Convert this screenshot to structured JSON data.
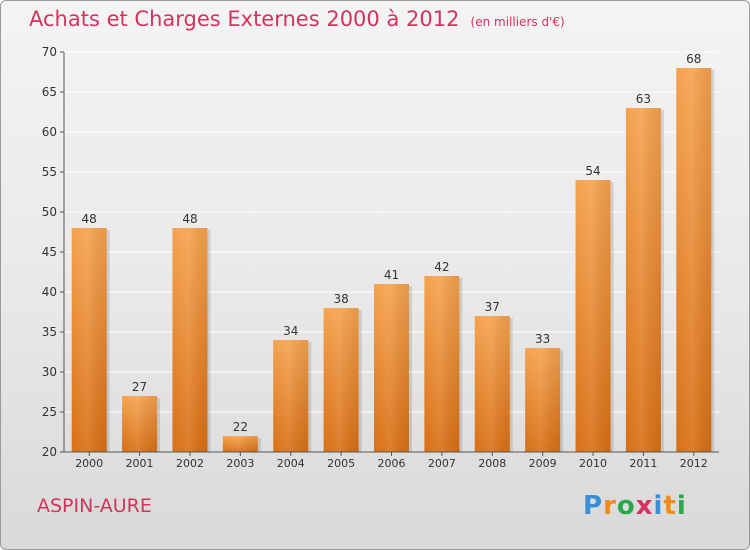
{
  "title": "Achats et Charges Externes 2000 à 2012",
  "subtitle": "(en milliers d'€)",
  "commune": "ASPIN-AURE",
  "brand": {
    "letters": [
      "P",
      "r",
      "o",
      "x",
      "i",
      "t",
      "i"
    ],
    "colors": [
      "#3a8fd6",
      "#f08a1a",
      "#2aa84a",
      "#d2345e",
      "#3a8fd6",
      "#f08a1a",
      "#2aa84a"
    ]
  },
  "colors": {
    "bar_top": "#f5a24e",
    "bar_bottom": "#d86f15",
    "title": "#d2345e",
    "axis_text": "#333333",
    "grid": "#ffffff"
  },
  "chart_data": {
    "type": "bar",
    "categories": [
      "2000",
      "2001",
      "2002",
      "2003",
      "2004",
      "2005",
      "2006",
      "2007",
      "2008",
      "2009",
      "2010",
      "2011",
      "2012"
    ],
    "values": [
      48,
      27,
      48,
      22,
      34,
      38,
      41,
      42,
      37,
      33,
      54,
      63,
      68
    ],
    "ylim": [
      20,
      70
    ],
    "yticks": [
      20,
      25,
      30,
      35,
      40,
      45,
      50,
      55,
      60,
      65,
      70
    ],
    "grid": true,
    "legend": "none"
  }
}
